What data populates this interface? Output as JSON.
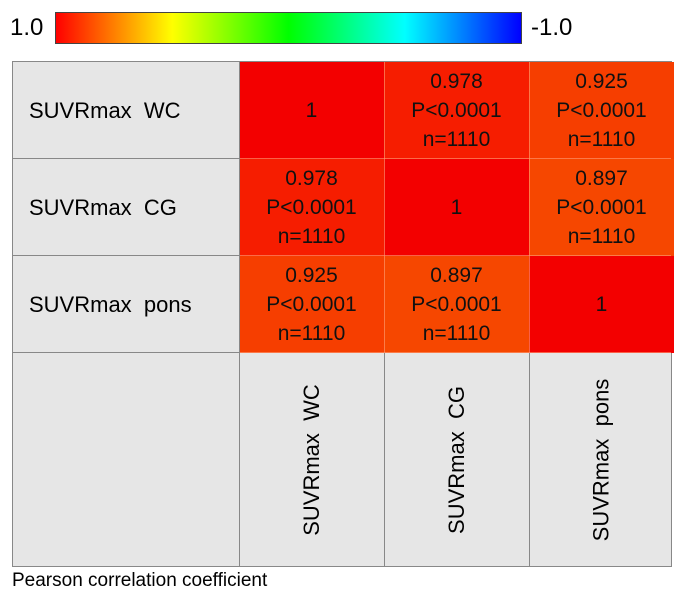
{
  "colorbar": {
    "min_label": "1.0",
    "max_label": "-1.0",
    "gradient": [
      "#ff0000",
      "#ffff00",
      "#00ff00",
      "#00ffff",
      "#0000ff"
    ]
  },
  "chart_data": {
    "type": "heatmap",
    "rows": [
      "SUVRmax  WC",
      "SUVRmax  CG",
      "SUVRmax  pons"
    ],
    "columns": [
      "SUVRmax  WC",
      "SUVRmax  CG",
      "SUVRmax  pons"
    ],
    "values": [
      [
        1,
        0.978,
        0.925
      ],
      [
        0.978,
        1,
        0.897
      ],
      [
        0.925,
        0.897,
        1
      ]
    ],
    "cell_text": [
      [
        [
          "1"
        ],
        [
          "0.978",
          "P<0.0001",
          "n=1110"
        ],
        [
          "0.925",
          "P<0.0001",
          "n=1110"
        ]
      ],
      [
        [
          "0.978",
          "P<0.0001",
          "n=1110"
        ],
        [
          "1"
        ],
        [
          "0.897",
          "P<0.0001",
          "n=1110"
        ]
      ],
      [
        [
          "0.925",
          "P<0.0001",
          "n=1110"
        ],
        [
          "0.897",
          "P<0.0001",
          "n=1110"
        ],
        [
          "1"
        ]
      ]
    ],
    "color_range": [
      1.0,
      -1.0
    ],
    "cell_colors": [
      [
        "#f30000",
        "#f61d00",
        "#f63e00"
      ],
      [
        "#f61d00",
        "#f30000",
        "#f64700"
      ],
      [
        "#f63e00",
        "#f64700",
        "#f30000"
      ]
    ]
  },
  "footer": "Pearson correlation coefficient"
}
